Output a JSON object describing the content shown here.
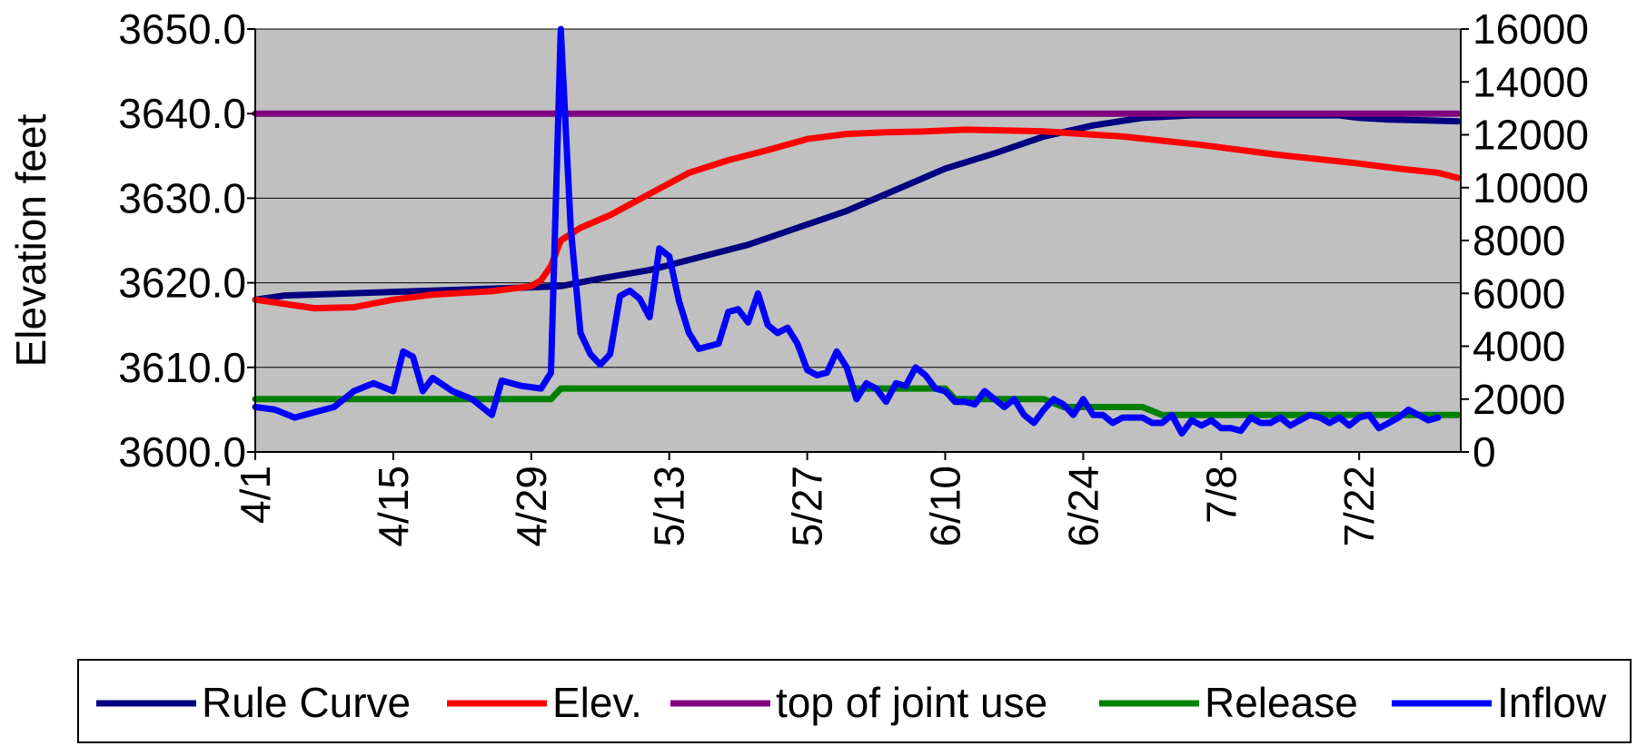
{
  "chart_data": {
    "type": "line",
    "title": "",
    "ylabel": "Elevation feet",
    "y2label": "",
    "xlabel": "",
    "ylim": [
      3600,
      3650
    ],
    "y2lim": [
      0,
      16000
    ],
    "grid": true,
    "legend_position": "bottom",
    "x_tick_labels": [
      "4/1",
      "4/15",
      "4/29",
      "5/13",
      "5/27",
      "6/10",
      "6/24",
      "7/8",
      "7/22"
    ],
    "y_tick_labels": [
      "3600.0",
      "3610.0",
      "3620.0",
      "3630.0",
      "3640.0",
      "3650.0"
    ],
    "y2_tick_labels": [
      "0",
      "2000",
      "4000",
      "6000",
      "8000",
      "10000",
      "12000",
      "14000",
      "16000"
    ],
    "series": [
      {
        "name": "Rule Curve",
        "axis": "left",
        "color": "#000080",
        "points": [
          [
            0,
            3618
          ],
          [
            3,
            3618.5
          ],
          [
            29,
            3619.5
          ],
          [
            31,
            3619.6
          ],
          [
            35,
            3620.5
          ],
          [
            40,
            3621.5
          ],
          [
            45,
            3623
          ],
          [
            50,
            3624.5
          ],
          [
            55,
            3626.5
          ],
          [
            60,
            3628.5
          ],
          [
            65,
            3631
          ],
          [
            70,
            3633.5
          ],
          [
            75,
            3635.3
          ],
          [
            80,
            3637.3
          ],
          [
            85,
            3638.6
          ],
          [
            90,
            3639.5
          ],
          [
            95,
            3639.8
          ],
          [
            100,
            3639.8
          ],
          [
            105,
            3639.8
          ],
          [
            110,
            3639.8
          ],
          [
            112,
            3639.5
          ],
          [
            115,
            3639.3
          ],
          [
            119,
            3639.2
          ],
          [
            122,
            3639.1
          ]
        ]
      },
      {
        "name": "Elev.",
        "axis": "left",
        "color": "#ff0000",
        "points": [
          [
            0,
            3618
          ],
          [
            3,
            3617.5
          ],
          [
            6,
            3617
          ],
          [
            10,
            3617.1
          ],
          [
            14,
            3618
          ],
          [
            18,
            3618.6
          ],
          [
            24,
            3619
          ],
          [
            28,
            3619.6
          ],
          [
            29,
            3620.3
          ],
          [
            30,
            3622
          ],
          [
            31,
            3625
          ],
          [
            33,
            3626.5
          ],
          [
            36,
            3628
          ],
          [
            40,
            3630.5
          ],
          [
            44,
            3633
          ],
          [
            48,
            3634.5
          ],
          [
            52,
            3635.7
          ],
          [
            56,
            3637
          ],
          [
            60,
            3637.6
          ],
          [
            64,
            3637.8
          ],
          [
            68,
            3637.9
          ],
          [
            72,
            3638.1
          ],
          [
            76,
            3638
          ],
          [
            80,
            3637.9
          ],
          [
            84,
            3637.6
          ],
          [
            88,
            3637.3
          ],
          [
            92,
            3636.8
          ],
          [
            96,
            3636.3
          ],
          [
            100,
            3635.7
          ],
          [
            104,
            3635.1
          ],
          [
            108,
            3634.6
          ],
          [
            112,
            3634.1
          ],
          [
            116,
            3633.5
          ],
          [
            120,
            3633
          ],
          [
            122,
            3632.4
          ]
        ]
      },
      {
        "name": "top of joint use",
        "axis": "left",
        "color": "#800080",
        "points": [
          [
            0,
            3640
          ],
          [
            122,
            3640
          ]
        ]
      },
      {
        "name": "Release",
        "axis": "right",
        "color": "#008000",
        "points": [
          [
            0,
            2000
          ],
          [
            30,
            2000
          ],
          [
            31,
            2400
          ],
          [
            70,
            2400
          ],
          [
            71,
            2000
          ],
          [
            80,
            2000
          ],
          [
            82,
            1700
          ],
          [
            90,
            1700
          ],
          [
            92,
            1400
          ],
          [
            122,
            1400
          ]
        ]
      },
      {
        "name": "Inflow",
        "axis": "right",
        "color": "#0000ff",
        "points": [
          [
            0,
            1700
          ],
          [
            2,
            1600
          ],
          [
            4,
            1300
          ],
          [
            6,
            1500
          ],
          [
            8,
            1700
          ],
          [
            10,
            2300
          ],
          [
            12,
            2600
          ],
          [
            14,
            2300
          ],
          [
            15,
            3800
          ],
          [
            16,
            3600
          ],
          [
            17,
            2300
          ],
          [
            18,
            2800
          ],
          [
            20,
            2300
          ],
          [
            22,
            2000
          ],
          [
            24,
            1400
          ],
          [
            25,
            2700
          ],
          [
            27,
            2500
          ],
          [
            29,
            2400
          ],
          [
            30,
            3000
          ],
          [
            31,
            16000
          ],
          [
            32,
            8500
          ],
          [
            33,
            4500
          ],
          [
            34,
            3700
          ],
          [
            35,
            3300
          ],
          [
            36,
            3700
          ],
          [
            37,
            5900
          ],
          [
            38,
            6100
          ],
          [
            39,
            5800
          ],
          [
            40,
            5100
          ],
          [
            41,
            7700
          ],
          [
            42,
            7400
          ],
          [
            43,
            5700
          ],
          [
            44,
            4500
          ],
          [
            45,
            3900
          ],
          [
            46,
            4000
          ],
          [
            47,
            4100
          ],
          [
            48,
            5300
          ],
          [
            49,
            5400
          ],
          [
            50,
            4900
          ],
          [
            51,
            6000
          ],
          [
            52,
            4800
          ],
          [
            53,
            4500
          ],
          [
            54,
            4700
          ],
          [
            55,
            4100
          ],
          [
            56,
            3100
          ],
          [
            57,
            2900
          ],
          [
            58,
            3000
          ],
          [
            59,
            3800
          ],
          [
            60,
            3200
          ],
          [
            61,
            2000
          ],
          [
            62,
            2600
          ],
          [
            63,
            2400
          ],
          [
            64,
            1900
          ],
          [
            65,
            2600
          ],
          [
            66,
            2500
          ],
          [
            67,
            3200
          ],
          [
            68,
            2900
          ],
          [
            69,
            2400
          ],
          [
            70,
            2300
          ],
          [
            71,
            1900
          ],
          [
            72,
            1900
          ],
          [
            73,
            1800
          ],
          [
            74,
            2300
          ],
          [
            75,
            2000
          ],
          [
            76,
            1700
          ],
          [
            77,
            2000
          ],
          [
            78,
            1400
          ],
          [
            79,
            1100
          ],
          [
            80,
            1600
          ],
          [
            81,
            2000
          ],
          [
            82,
            1800
          ],
          [
            83,
            1400
          ],
          [
            84,
            2000
          ],
          [
            85,
            1400
          ],
          [
            86,
            1400
          ],
          [
            87,
            1100
          ],
          [
            88,
            1300
          ],
          [
            89,
            1300
          ],
          [
            90,
            1300
          ],
          [
            91,
            1100
          ],
          [
            92,
            1100
          ],
          [
            93,
            1400
          ],
          [
            94,
            700
          ],
          [
            95,
            1200
          ],
          [
            96,
            1000
          ],
          [
            97,
            1200
          ],
          [
            98,
            900
          ],
          [
            99,
            900
          ],
          [
            100,
            800
          ],
          [
            101,
            1300
          ],
          [
            102,
            1100
          ],
          [
            103,
            1100
          ],
          [
            104,
            1300
          ],
          [
            105,
            1000
          ],
          [
            106,
            1200
          ],
          [
            107,
            1400
          ],
          [
            108,
            1300
          ],
          [
            109,
            1100
          ],
          [
            110,
            1300
          ],
          [
            111,
            1000
          ],
          [
            112,
            1300
          ],
          [
            113,
            1400
          ],
          [
            114,
            900
          ],
          [
            115,
            1100
          ],
          [
            116,
            1300
          ],
          [
            117,
            1600
          ],
          [
            118,
            1400
          ],
          [
            119,
            1200
          ],
          [
            120,
            1300
          ]
        ]
      }
    ]
  }
}
